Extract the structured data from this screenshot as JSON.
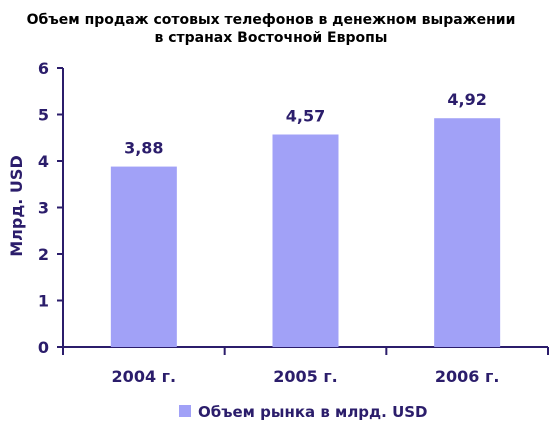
{
  "chart_data": {
    "type": "bar",
    "title": "Объем продаж сотовых телефонов в денежном выражении в странах Восточной Европы",
    "title_lines": [
      "Объем продаж сотовых телефонов в денежном выражении",
      "в странах Восточной Европы"
    ],
    "ylabel": "Млрд. USD",
    "xlabel": "",
    "categories": [
      "2004 г.",
      "2005 г.",
      "2006 г."
    ],
    "series": [
      {
        "name": "Объем рынка в млрд. USD",
        "values": [
          3.88,
          4.57,
          4.92
        ],
        "value_labels": [
          "3,88",
          "4,57",
          "4,92"
        ],
        "color": "#a1a1f7"
      }
    ],
    "ylim": [
      0,
      6
    ],
    "y_ticks": [
      0,
      1,
      2,
      3,
      4,
      5,
      6
    ],
    "grid": false,
    "legend": "bottom-center",
    "axis_color": "#2b1d6b"
  }
}
